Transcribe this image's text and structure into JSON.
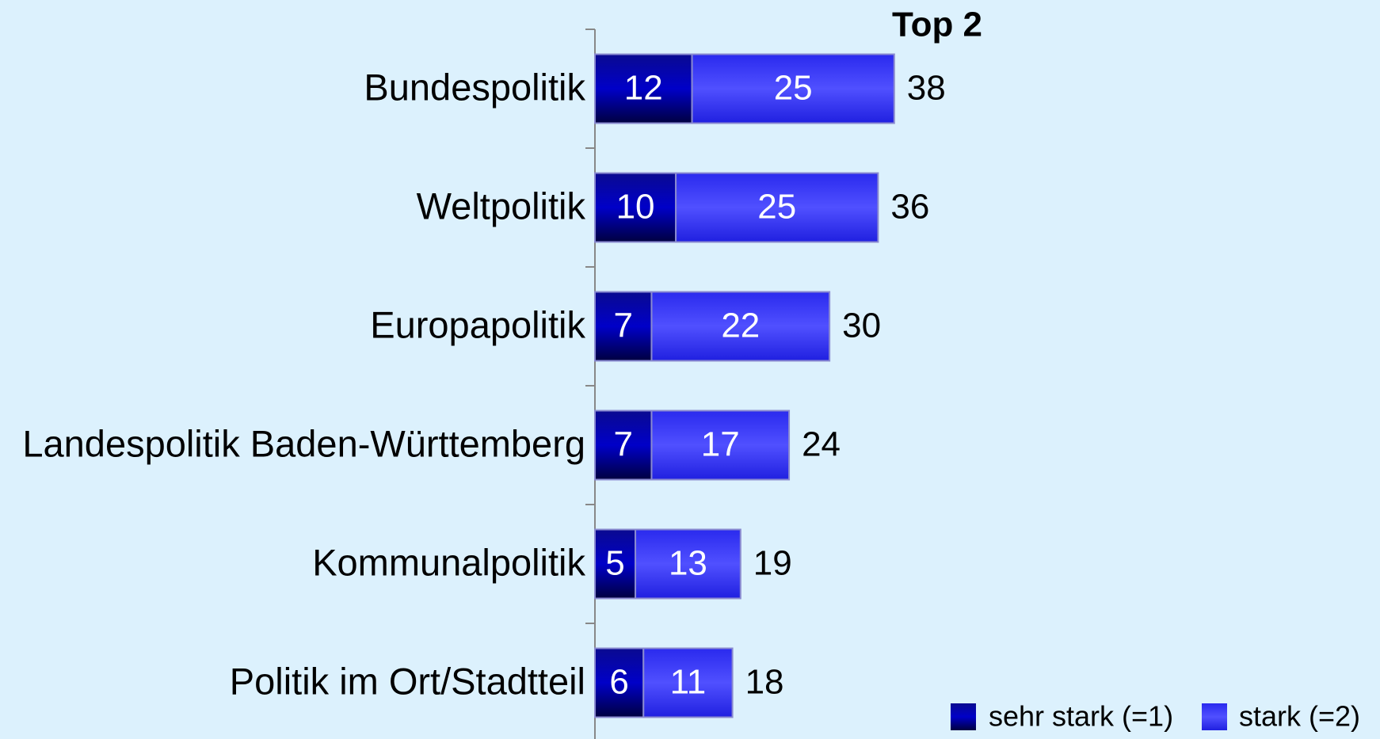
{
  "chart_data": {
    "type": "stacked-hbar",
    "categories": [
      "Bundespolitik",
      "Weltpolitik",
      "Europapolitik",
      "Landespolitik Baden-Württemberg",
      "Kommunalpolitik",
      "Politik im Ort/Stadtteil"
    ],
    "series": [
      {
        "name": "sehr stark (=1)",
        "color": "#00007a",
        "values": [
          12,
          10,
          7,
          7,
          5,
          6
        ]
      },
      {
        "name": "stark (=2)",
        "color": "#3434f4",
        "values": [
          25,
          25,
          22,
          17,
          13,
          11
        ]
      }
    ],
    "totals_title": "Top 2",
    "totals": [
      38,
      36,
      30,
      24,
      19,
      18
    ],
    "xlim": [
      0,
      90
    ],
    "legend": "bottom-right"
  }
}
